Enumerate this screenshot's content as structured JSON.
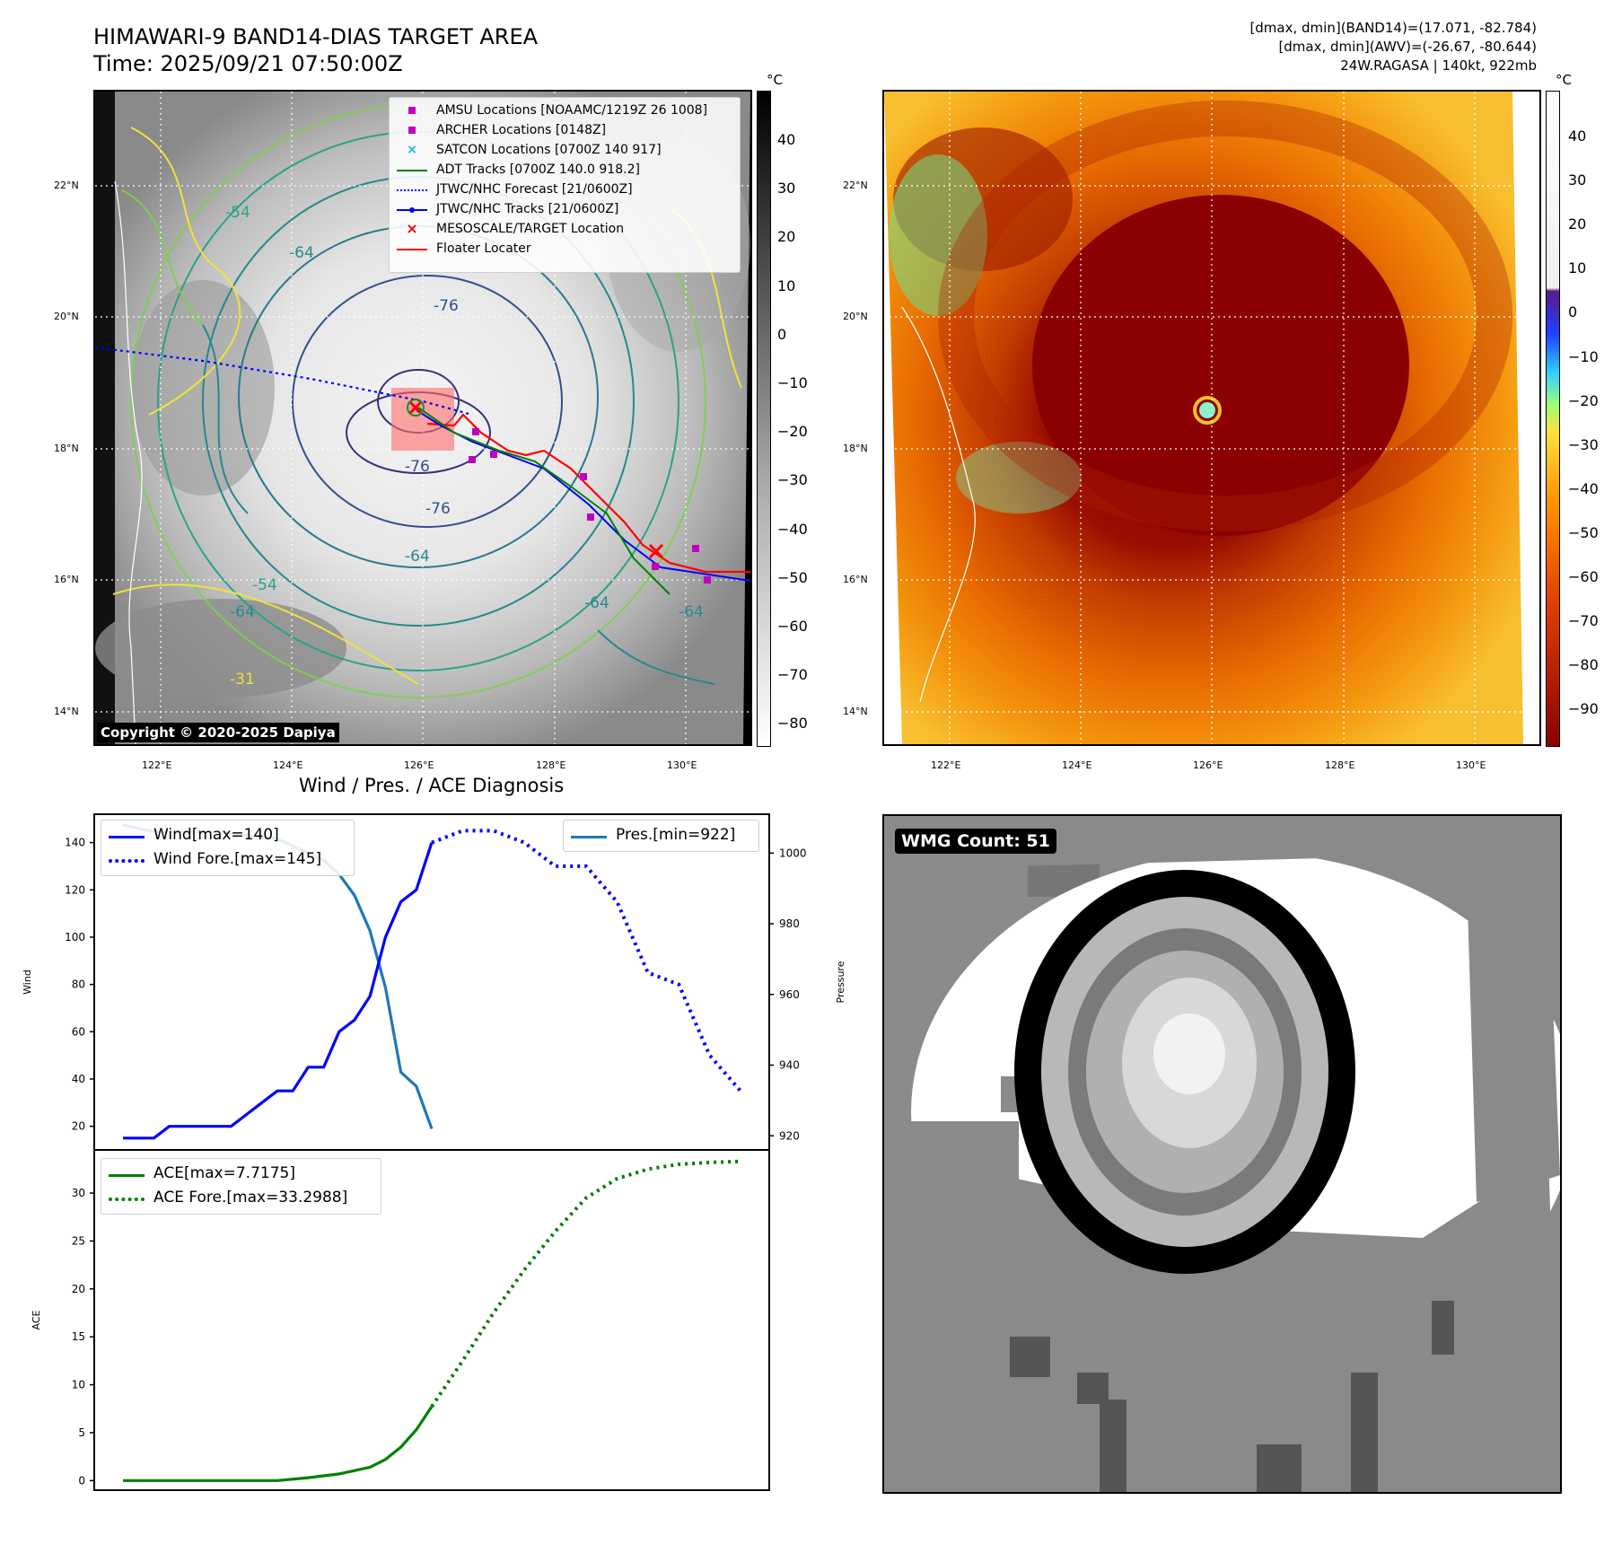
{
  "header": {
    "title_line1": "HIMAWARI-9 BAND14-DIAS TARGET AREA",
    "title_line2": "Time: 2025/09/21 07:50:00Z",
    "info_line1": "[dmax, dmin](BAND14)=(17.071, -82.784)",
    "info_line2": "[dmax, dmin](AWV)=(-26.67, -80.644)",
    "info_line3": "24W.RAGASA | 140kt, 922mb"
  },
  "map_axes": {
    "lat_labels": [
      "22°N",
      "20°N",
      "18°N",
      "16°N",
      "14°N"
    ],
    "lon_labels": [
      "122°E",
      "124°E",
      "126°E",
      "128°E",
      "130°E"
    ]
  },
  "ir_map": {
    "copyright": "Copyright © 2020-2025 Dapiya",
    "contour_labels": [
      "-76",
      "-76",
      "-76",
      "-64",
      "-64",
      "-64",
      "-64",
      "-54",
      "-54",
      "-31",
      "-64"
    ],
    "legend": [
      {
        "label": "AMSU Locations [NOAAMC/1219Z 26 1008]",
        "marker": "square",
        "color": "#c000c0"
      },
      {
        "label": "ARCHER Locations [0148Z]",
        "marker": "square",
        "color": "#c000c0"
      },
      {
        "label": "SATCON Locations [0700Z 140 917]",
        "marker": "x",
        "color": "#17becf"
      },
      {
        "label": "ADT Tracks [0700Z 140.0 918.2]",
        "marker": "line",
        "color": "#008000"
      },
      {
        "label": "JTWC/NHC Forecast [21/0600Z]",
        "marker": "dotted",
        "color": "#0000ff"
      },
      {
        "label": "JTWC/NHC Tracks [21/0600Z]",
        "marker": "line-dot",
        "color": "#0000ff"
      },
      {
        "label": "MESOSCALE/TARGET Location",
        "marker": "x",
        "color": "#ff0000"
      },
      {
        "label": "Floater Locater",
        "marker": "line",
        "color": "#ff0000"
      }
    ],
    "colorbar": {
      "unit": "°C",
      "ticks": [
        "40",
        "30",
        "20",
        "10",
        "0",
        "−10",
        "−20",
        "−30",
        "−40",
        "−50",
        "−60",
        "−70",
        "−80"
      ]
    }
  },
  "awv_map": {
    "colorbar": {
      "unit": "°C",
      "ticks": [
        "40",
        "30",
        "20",
        "10",
        "0",
        "−10",
        "−20",
        "−30",
        "−40",
        "−50",
        "−60",
        "−70",
        "−80",
        "−90"
      ]
    }
  },
  "wmg": {
    "label": "WMG Count: 51"
  },
  "diag": {
    "title": "Wind / Pres. / ACE Diagnosis",
    "wind_ylabel": "Wind",
    "pres_ylabel": "Pressure",
    "ace_ylabel": "ACE",
    "legend_wind": "Wind[max=140]",
    "legend_wind_fore": "Wind Fore.[max=145]",
    "legend_pres": "Pres.[min=922]",
    "legend_ace": "ACE[max=7.7175]",
    "legend_ace_fore": "ACE Fore.[max=33.2988]"
  },
  "chart_data": [
    {
      "type": "line",
      "title": "Wind / Pres. / ACE Diagnosis",
      "ylabel": "Wind",
      "ylim": [
        10,
        152
      ],
      "y2label": "Pressure",
      "y2lim": [
        916,
        1011
      ],
      "yticks": [
        20,
        40,
        60,
        80,
        100,
        120,
        140
      ],
      "y2ticks": [
        920,
        940,
        960,
        980,
        1000
      ],
      "x_index_range": [
        0,
        40
      ],
      "series": [
        {
          "name": "Wind[max=140]",
          "axis": "left",
          "style": "solid",
          "color": "#0000ff",
          "x": [
            0,
            1,
            2,
            3,
            4,
            5,
            6,
            7,
            8,
            9,
            10,
            11,
            12,
            13,
            14,
            15,
            16,
            17,
            18,
            19,
            20
          ],
          "values": [
            15,
            15,
            15,
            20,
            20,
            20,
            20,
            20,
            25,
            30,
            35,
            35,
            45,
            45,
            60,
            65,
            75,
            100,
            115,
            120,
            140
          ]
        },
        {
          "name": "Wind Fore.[max=145]",
          "axis": "left",
          "style": "dotted",
          "color": "#0000ff",
          "x": [
            20,
            22,
            24,
            26,
            28,
            30,
            32,
            34,
            36,
            38,
            40
          ],
          "values": [
            140,
            145,
            145,
            140,
            130,
            130,
            115,
            85,
            80,
            50,
            35
          ]
        },
        {
          "name": "Pres.[min=922]",
          "axis": "right",
          "style": "solid",
          "color": "#1f77b4",
          "x": [
            0,
            2,
            4,
            6,
            8,
            10,
            11,
            12,
            13,
            14,
            15,
            16,
            17,
            18,
            19,
            20
          ],
          "values": [
            1008,
            1006,
            1006,
            1006,
            1005,
            1004,
            1002,
            1000,
            998,
            994,
            988,
            978,
            962,
            938,
            934,
            922
          ]
        }
      ]
    },
    {
      "type": "line",
      "ylabel": "ACE",
      "ylim": [
        -1,
        34.5
      ],
      "yticks": [
        0,
        5,
        10,
        15,
        20,
        25,
        30
      ],
      "x_index_range": [
        0,
        40
      ],
      "series": [
        {
          "name": "ACE[max=7.7175]",
          "style": "solid",
          "color": "#008000",
          "x": [
            0,
            2,
            4,
            6,
            8,
            10,
            12,
            14,
            16,
            17,
            18,
            19,
            20
          ],
          "values": [
            0,
            0,
            0,
            0,
            0,
            0,
            0.3,
            0.7,
            1.4,
            2.2,
            3.5,
            5.3,
            7.7175
          ]
        },
        {
          "name": "ACE Fore.[max=33.2988]",
          "style": "dotted",
          "color": "#008000",
          "x": [
            20,
            22,
            24,
            26,
            28,
            30,
            32,
            34,
            36,
            38,
            40
          ],
          "values": [
            7.7175,
            12.5,
            17.5,
            22,
            26,
            29.5,
            31.5,
            32.5,
            33,
            33.2,
            33.2988
          ]
        }
      ]
    }
  ]
}
